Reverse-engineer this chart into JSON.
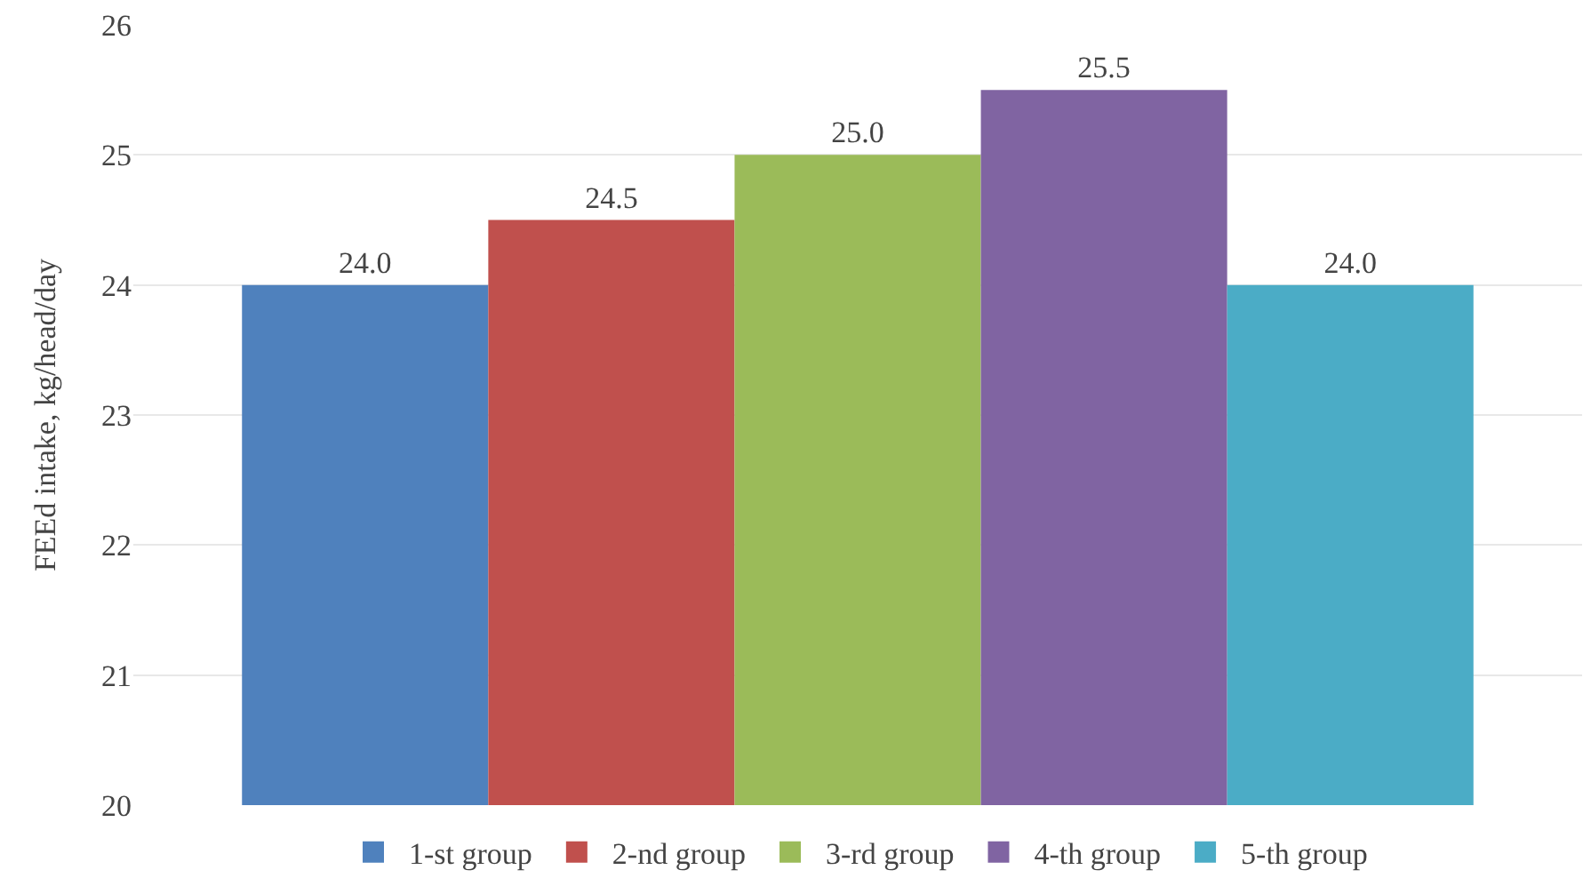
{
  "chart_data": {
    "type": "bar",
    "ylabel": "FEEd intake, kg/head/day",
    "categories": [
      null
    ],
    "series": [
      {
        "name": "1-st group",
        "color": "#4f81bd",
        "values": [
          24.0
        ],
        "value_labels": [
          "24.0"
        ]
      },
      {
        "name": "2-nd group",
        "color": "#c0504d",
        "values": [
          24.5
        ],
        "value_labels": [
          "24.5"
        ]
      },
      {
        "name": "3-rd group",
        "color": "#9bbb59",
        "values": [
          25.0
        ],
        "value_labels": [
          "25.0"
        ]
      },
      {
        "name": "4-th group",
        "color": "#8064a2",
        "values": [
          25.5
        ],
        "value_labels": [
          "25.5"
        ]
      },
      {
        "name": "5-th group",
        "color": "#4bacc6",
        "values": [
          24.0
        ],
        "value_labels": [
          "24.0"
        ]
      }
    ],
    "ylim": [
      20,
      26
    ],
    "yticks": [
      20,
      21,
      22,
      23,
      24,
      25,
      26
    ],
    "grid": "y",
    "legend": "bottom"
  }
}
